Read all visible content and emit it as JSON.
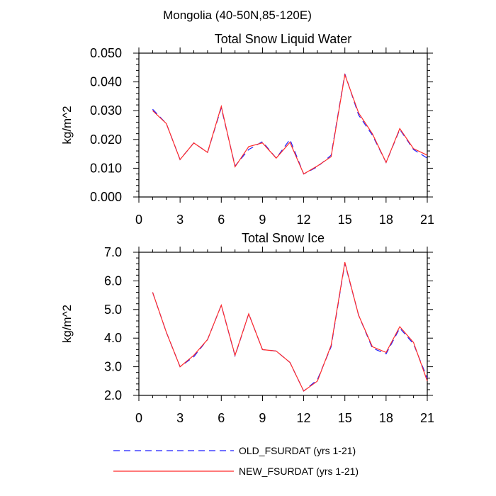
{
  "figure_title": "Mongolia (40-50N,85-120E)",
  "legend": {
    "old_label": "OLD_FSURDAT (yrs 1-21)",
    "new_label": "NEW_FSURDAT (yrs 1-21)",
    "old_color": "#1f1fff",
    "new_color": "#ff2a2a"
  },
  "chart_data": [
    {
      "type": "line",
      "title": "Total Snow Liquid Water",
      "xlabel": "",
      "ylabel": "kg/m^2",
      "xlim": [
        0,
        21
      ],
      "ylim": [
        0.0,
        0.05
      ],
      "xticks": [
        0,
        3,
        6,
        9,
        12,
        15,
        18,
        21
      ],
      "xtick_labels": [
        "0",
        "3",
        "6",
        "9",
        "12",
        "15",
        "18",
        "21"
      ],
      "yticks": [
        0.0,
        0.01,
        0.02,
        0.03,
        0.04,
        0.05
      ],
      "ytick_labels": [
        "0.000",
        "0.010",
        "0.020",
        "0.030",
        "0.040",
        "0.050"
      ],
      "x": [
        1,
        2,
        3,
        4,
        5,
        6,
        7,
        8,
        9,
        10,
        11,
        12,
        13,
        14,
        15,
        16,
        17,
        18,
        19,
        20,
        21
      ],
      "series": [
        {
          "name": "OLD_FSURDAT (yrs 1-21)",
          "style": "dashed",
          "color": "#1f1fff",
          "values": [
            0.0305,
            0.0255,
            0.013,
            0.0188,
            0.0155,
            0.031,
            0.0108,
            0.0165,
            0.0192,
            0.0135,
            0.02,
            0.008,
            0.0105,
            0.0145,
            0.0428,
            0.0285,
            0.0215,
            0.012,
            0.0235,
            0.0165,
            0.0135
          ]
        },
        {
          "name": "NEW_FSURDAT (yrs 1-21)",
          "style": "solid",
          "color": "#ff2a2a",
          "values": [
            0.03,
            0.0255,
            0.013,
            0.0188,
            0.0155,
            0.0315,
            0.0105,
            0.0175,
            0.0188,
            0.0135,
            0.019,
            0.008,
            0.0108,
            0.014,
            0.0425,
            0.0292,
            0.022,
            0.012,
            0.0238,
            0.0168,
            0.0145
          ]
        }
      ]
    },
    {
      "type": "line",
      "title": "Total Snow Ice",
      "xlabel": "",
      "ylabel": "kg/m^2",
      "xlim": [
        0,
        21
      ],
      "ylim": [
        2.0,
        7.0
      ],
      "xticks": [
        0,
        3,
        6,
        9,
        12,
        15,
        18,
        21
      ],
      "xtick_labels": [
        "0",
        "3",
        "6",
        "9",
        "12",
        "15",
        "18",
        "21"
      ],
      "yticks": [
        2.0,
        3.0,
        4.0,
        5.0,
        6.0,
        7.0
      ],
      "ytick_labels": [
        "2.0",
        "3.0",
        "4.0",
        "5.0",
        "6.0",
        "7.0"
      ],
      "x": [
        1,
        2,
        3,
        4,
        5,
        6,
        7,
        8,
        9,
        10,
        11,
        12,
        13,
        14,
        15,
        16,
        17,
        18,
        19,
        20,
        21
      ],
      "series": [
        {
          "name": "OLD_FSURDAT (yrs 1-21)",
          "style": "dashed",
          "color": "#1f1fff",
          "values": [
            5.6,
            4.2,
            3.0,
            3.35,
            3.95,
            5.15,
            3.38,
            4.85,
            3.6,
            3.55,
            3.15,
            2.15,
            2.55,
            3.7,
            6.62,
            4.8,
            3.65,
            3.45,
            4.35,
            3.8,
            2.6
          ]
        },
        {
          "name": "NEW_FSURDAT (yrs 1-21)",
          "style": "solid",
          "color": "#ff2a2a",
          "values": [
            5.6,
            4.2,
            3.0,
            3.4,
            3.95,
            5.15,
            3.4,
            4.85,
            3.6,
            3.55,
            3.15,
            2.15,
            2.5,
            3.75,
            6.65,
            4.8,
            3.7,
            3.5,
            4.4,
            3.85,
            2.5
          ]
        }
      ]
    }
  ]
}
